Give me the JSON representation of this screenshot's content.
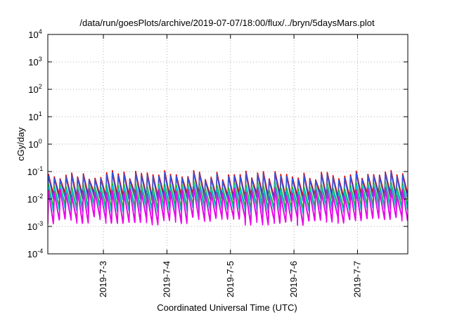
{
  "chart_data": {
    "type": "line",
    "title": "/data/run/goesPlots/archive/2019-07-07/18:00/flux/../bryn/5daysMars.plot",
    "xlabel": "Coordinated Universal Time (UTC)",
    "ylabel": "cGy/day",
    "y_scale": "log",
    "ylim": [
      0.0001,
      10000
    ],
    "xlim": [
      "2019-07-02 03:00",
      "2019-07-07 19:00"
    ],
    "x_ticks": [
      "2019-7-3",
      "2019-7-4",
      "2019-7-5",
      "2019-7-6",
      "2019-7-7"
    ],
    "y_ticks": [
      {
        "base": "10",
        "exp": "-4"
      },
      {
        "base": "10",
        "exp": "-3"
      },
      {
        "base": "10",
        "exp": "-2"
      },
      {
        "base": "10",
        "exp": "-1"
      },
      {
        "base": "10",
        "exp": "0"
      },
      {
        "base": "10",
        "exp": "1"
      },
      {
        "base": "10",
        "exp": "2"
      },
      {
        "base": "10",
        "exp": "3"
      },
      {
        "base": "10",
        "exp": "4"
      }
    ],
    "grid": true,
    "legend": "none",
    "pattern": {
      "description_values": "sawtooth: sharp rise at each cycle start, gradual decay",
      "cycles": 62,
      "top_series_peak_range": [
        0.05,
        0.11
      ],
      "top_series_trough": 0.015,
      "bottom_series_peak_range": [
        0.008,
        0.02
      ],
      "bottom_series_trough_range": [
        0.0009,
        0.002
      ]
    },
    "series": [
      {
        "color": "#dd0000",
        "peak_factor": 1.0,
        "trough_factor": 1.0
      },
      {
        "color": "#3355dd",
        "peak_factor": 0.92,
        "trough_factor": 0.85
      },
      {
        "color": "#22aa22",
        "peak_factor": 0.5,
        "trough_factor": 0.6
      },
      {
        "color": "#00cccc",
        "peak_factor": 0.38,
        "trough_factor": 0.45
      },
      {
        "color": "#9933aa",
        "peak_factor": 0.2,
        "trough_factor": 0.12
      },
      {
        "color": "#ee00ee",
        "peak_factor": 0.14,
        "trough_factor": 0.07
      }
    ]
  }
}
